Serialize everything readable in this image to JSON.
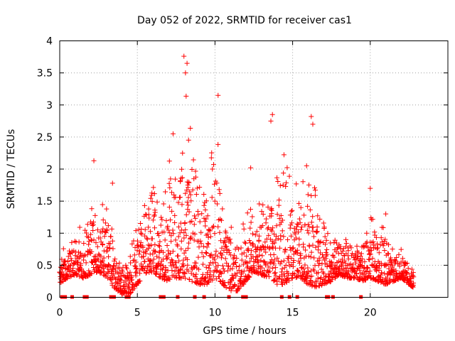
{
  "chart_data": {
    "type": "scatter",
    "title": "Day 052 of 2022, SRMTID for receiver cas1",
    "xlabel": "GPS time / hours",
    "ylabel": "SRMTID / TECUs",
    "xlim": [
      0,
      25
    ],
    "ylim": [
      0,
      4
    ],
    "xticks": [
      0,
      5,
      10,
      15,
      20
    ],
    "yticks": [
      0,
      0.5,
      1,
      1.5,
      2,
      2.5,
      3,
      3.5,
      4
    ],
    "grid": true,
    "marker": "+",
    "series_color": "#ff0000",
    "series": [
      {
        "name": "SRMTID",
        "envelope_hours": [
          0,
          0.5,
          1,
          1.5,
          2,
          2.5,
          3,
          3.5,
          4,
          4.5,
          5,
          5.5,
          6,
          6.5,
          7,
          7.5,
          8,
          8.5,
          9,
          9.5,
          10,
          10.5,
          11,
          11.5,
          12,
          12.5,
          13,
          13.5,
          14,
          14.5,
          15,
          15.5,
          16,
          16.5,
          17,
          17.5,
          18,
          18.5,
          19,
          19.5,
          20,
          20.5,
          21,
          21.5,
          22,
          22.5,
          22.8
        ],
        "envelope_low": [
          0.2,
          0.3,
          0.35,
          0.3,
          0.35,
          0.4,
          0.3,
          0.15,
          0.05,
          0.05,
          0.2,
          0.35,
          0.4,
          0.3,
          0.25,
          0.3,
          0.3,
          0.25,
          0.2,
          0.2,
          0.3,
          0.2,
          0.1,
          0.1,
          0.25,
          0.4,
          0.35,
          0.3,
          0.2,
          0.2,
          0.3,
          0.3,
          0.2,
          0.15,
          0.2,
          0.25,
          0.35,
          0.3,
          0.3,
          0.25,
          0.3,
          0.25,
          0.2,
          0.25,
          0.3,
          0.2,
          0.15
        ],
        "envelope_high": [
          0.8,
          0.9,
          1.0,
          1.2,
          1.5,
          1.3,
          1.7,
          0.8,
          0.5,
          0.7,
          1.5,
          1.8,
          2.1,
          1.6,
          2.5,
          2.3,
          3.7,
          2.8,
          2.4,
          2.0,
          3.1,
          1.9,
          1.2,
          1.0,
          1.9,
          1.5,
          1.6,
          2.1,
          2.8,
          2.4,
          1.9,
          2.0,
          2.6,
          2.1,
          1.6,
          0.9,
          1.0,
          1.1,
          0.9,
          1.0,
          1.7,
          1.2,
          1.3,
          0.7,
          0.8,
          0.6,
          0.4
        ],
        "peaks": [
          {
            "x": 2.2,
            "y": 2.13
          },
          {
            "x": 3.4,
            "y": 1.78
          },
          {
            "x": 7.3,
            "y": 2.55
          },
          {
            "x": 8.0,
            "y": 3.76
          },
          {
            "x": 8.2,
            "y": 3.65
          },
          {
            "x": 8.1,
            "y": 3.5
          },
          {
            "x": 10.2,
            "y": 3.15
          },
          {
            "x": 12.3,
            "y": 2.02
          },
          {
            "x": 13.7,
            "y": 2.85
          },
          {
            "x": 13.6,
            "y": 2.75
          },
          {
            "x": 16.2,
            "y": 2.82
          },
          {
            "x": 16.3,
            "y": 2.7
          },
          {
            "x": 20.0,
            "y": 1.7
          },
          {
            "x": 21.0,
            "y": 1.3
          }
        ],
        "zero_points_hours": [
          0.15,
          0.35,
          0.8,
          1.6,
          1.75,
          3.3,
          3.5,
          4.3,
          4.45,
          6.5,
          6.7,
          7.6,
          8.7,
          9.3,
          10.9,
          11.8,
          12.0,
          14.3,
          14.8,
          15.3,
          17.2,
          17.3,
          17.6,
          19.4
        ]
      }
    ]
  }
}
